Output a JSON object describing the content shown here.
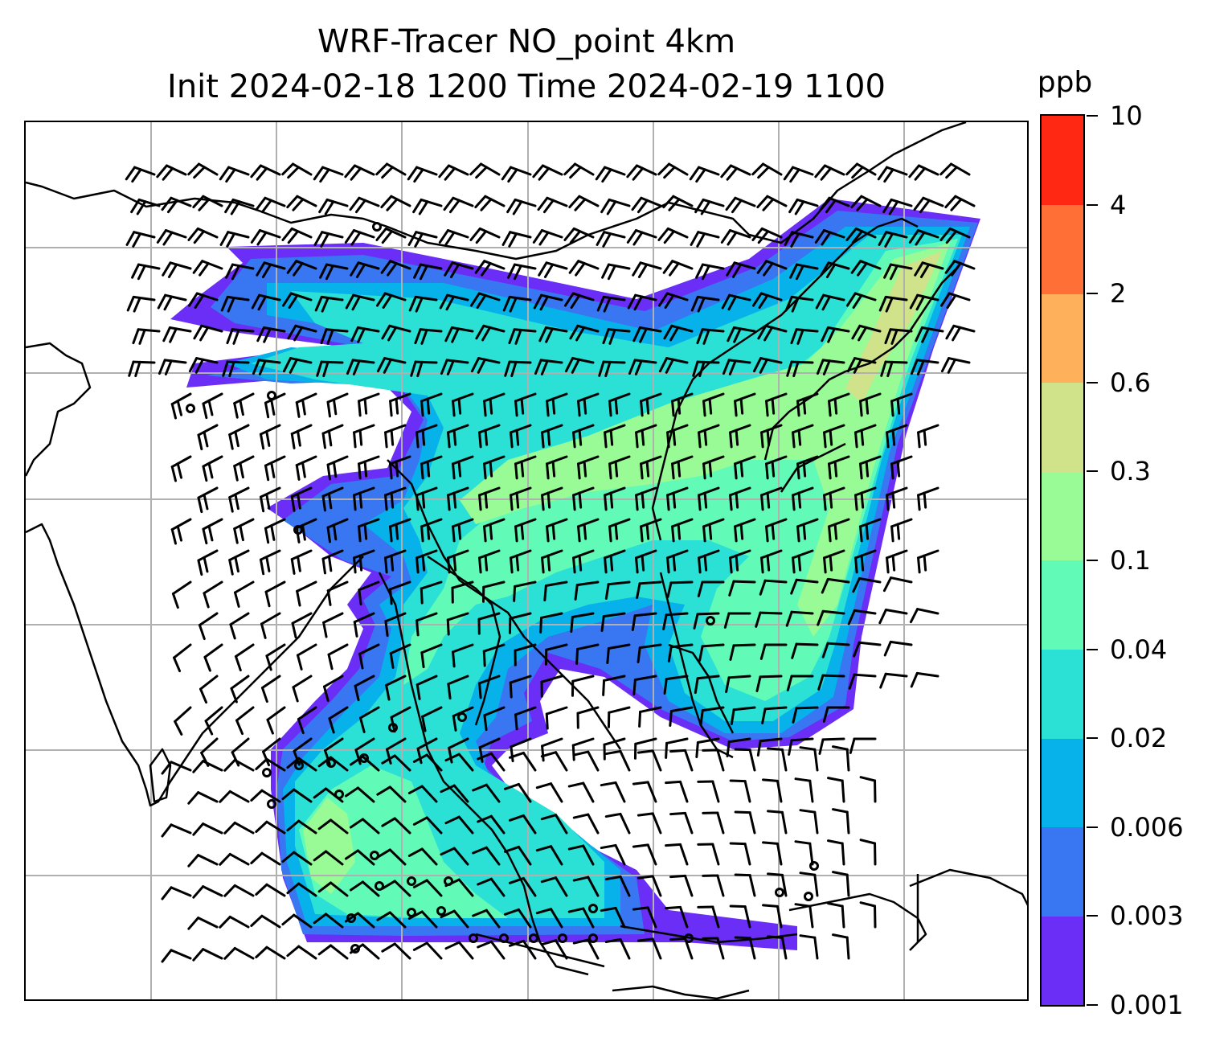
{
  "title": {
    "line1": "WRF-Tracer NO_point 4km",
    "line2": "Init 2024-02-18 1200 Time 2024-02-19 1100"
  },
  "colorbar": {
    "unit": "ppb",
    "levels": [
      "0.001",
      "0.003",
      "0.006",
      "0.02",
      "0.04",
      "0.1",
      "0.3",
      "0.6",
      "2",
      "4",
      "10"
    ],
    "colors": [
      "#6a2ef7",
      "#3876f2",
      "#07b2ea",
      "#2be0d5",
      "#62fab7",
      "#98fb96",
      "#d0e38a",
      "#ffb05b",
      "#ff6f36",
      "#ff2812"
    ]
  },
  "map": {
    "grid": "on",
    "wind_barbs": "shown",
    "coastlines": "shown"
  }
}
